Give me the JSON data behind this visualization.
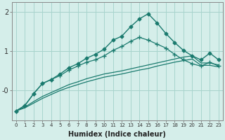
{
  "title": "",
  "xlabel": "Humidex (Indice chaleur)",
  "background_color": "#d5eeea",
  "line_color": "#1a7a6e",
  "grid_color": "#a8d5ce",
  "xlim": [
    -0.5,
    23.5
  ],
  "ylim": [
    -0.75,
    2.25
  ],
  "yticks": [
    2.0,
    1.0,
    0.0
  ],
  "ytick_labels": [
    "2",
    "1",
    "-0"
  ],
  "xticks": [
    0,
    1,
    2,
    3,
    4,
    5,
    6,
    7,
    8,
    9,
    10,
    11,
    12,
    13,
    14,
    15,
    16,
    17,
    18,
    19,
    20,
    21,
    22,
    23
  ],
  "series": [
    {
      "x": [
        0,
        1,
        2,
        3,
        4,
        5,
        6,
        7,
        8,
        9,
        10,
        11,
        12,
        13,
        14,
        15,
        16,
        17,
        18,
        19,
        20,
        21,
        22,
        23
      ],
      "y": [
        -0.52,
        -0.38,
        -0.08,
        0.18,
        0.28,
        0.42,
        0.58,
        0.68,
        0.82,
        0.92,
        1.05,
        1.28,
        1.38,
        1.62,
        1.82,
        1.95,
        1.72,
        1.45,
        1.22,
        1.02,
        0.88,
        0.78,
        0.95,
        0.78
      ],
      "marker": "D",
      "markersize": 2.5,
      "linewidth": 1.0
    },
    {
      "x": [
        0,
        1,
        2,
        3,
        4,
        5,
        6,
        7,
        8,
        9,
        10,
        11,
        12,
        13,
        14,
        15,
        16,
        17,
        18,
        19,
        20,
        21,
        22,
        23
      ],
      "y": [
        -0.52,
        -0.38,
        -0.08,
        0.18,
        0.28,
        0.38,
        0.52,
        0.62,
        0.72,
        0.78,
        0.88,
        1.02,
        1.12,
        1.25,
        1.35,
        1.28,
        1.18,
        1.08,
        0.92,
        0.78,
        0.68,
        0.62,
        0.72,
        0.62
      ],
      "marker": "+",
      "markersize": 4,
      "linewidth": 0.9
    },
    {
      "x": [
        0,
        1,
        2,
        3,
        4,
        5,
        6,
        7,
        8,
        9,
        10,
        11,
        12,
        13,
        14,
        15,
        16,
        17,
        18,
        19,
        20,
        21,
        22,
        23
      ],
      "y": [
        -0.52,
        -0.42,
        -0.28,
        -0.15,
        -0.05,
        0.05,
        0.15,
        0.22,
        0.3,
        0.36,
        0.42,
        0.46,
        0.5,
        0.55,
        0.6,
        0.65,
        0.7,
        0.75,
        0.8,
        0.85,
        0.88,
        0.7,
        0.7,
        0.65
      ],
      "marker": null,
      "markersize": 0,
      "linewidth": 0.9
    },
    {
      "x": [
        0,
        1,
        2,
        3,
        4,
        5,
        6,
        7,
        8,
        9,
        10,
        11,
        12,
        13,
        14,
        15,
        16,
        17,
        18,
        19,
        20,
        21,
        22,
        23
      ],
      "y": [
        -0.52,
        -0.44,
        -0.32,
        -0.2,
        -0.1,
        0.0,
        0.08,
        0.15,
        0.22,
        0.28,
        0.34,
        0.38,
        0.42,
        0.47,
        0.52,
        0.56,
        0.62,
        0.67,
        0.72,
        0.76,
        0.8,
        0.64,
        0.64,
        0.6
      ],
      "marker": null,
      "markersize": 0,
      "linewidth": 0.9
    }
  ]
}
